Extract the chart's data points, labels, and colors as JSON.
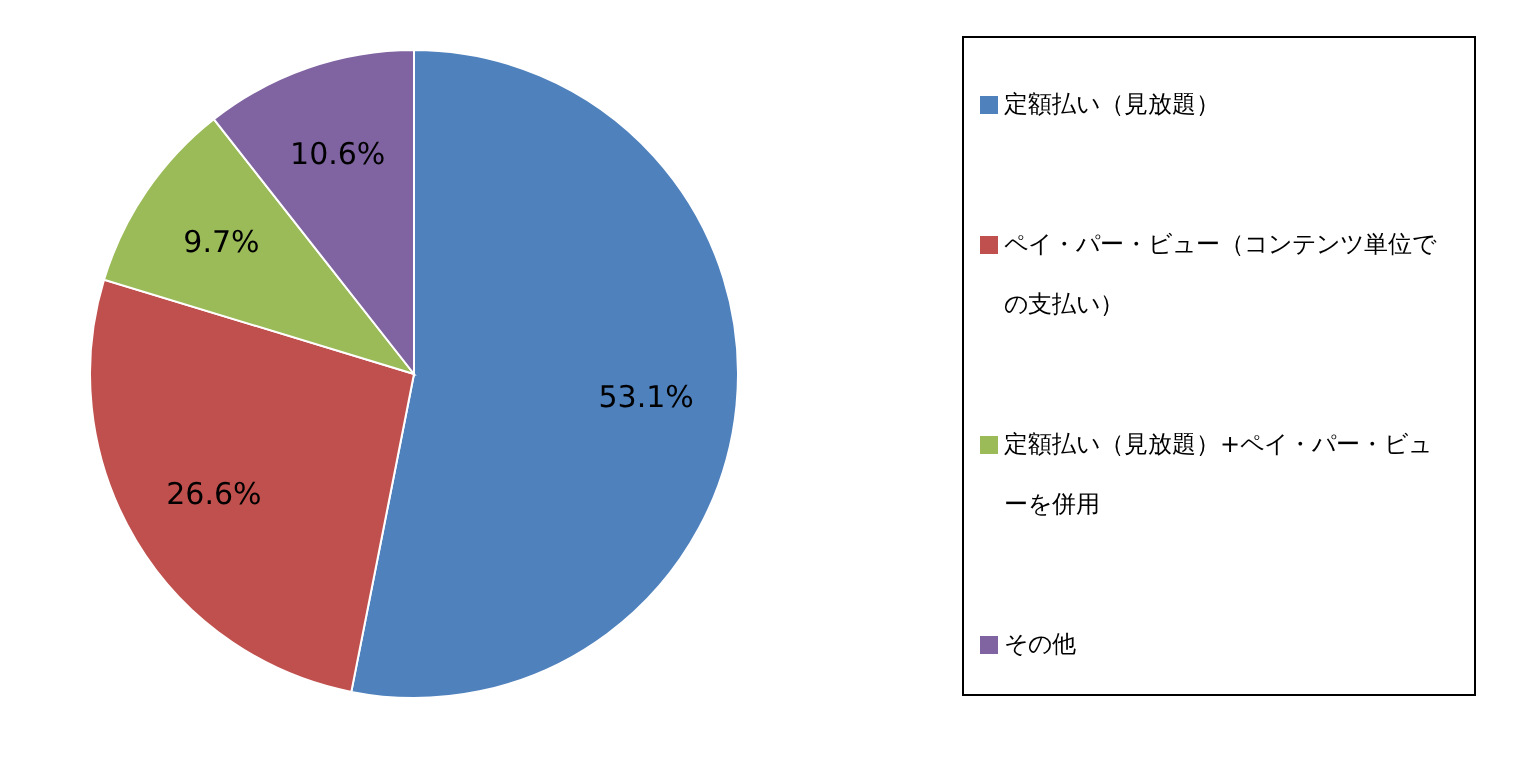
{
  "chart_data": {
    "type": "pie",
    "categories": [
      "定額払い（見放題）",
      "ペイ・パー・ビュー（コンテンツ単位での支払い）",
      "定額払い（見放題）+ペイ・パー・ビューを併用",
      "その他"
    ],
    "values": [
      53.1,
      26.6,
      9.7,
      10.6
    ],
    "value_labels": [
      "53.1%",
      "26.6%",
      "9.7%",
      "10.6%"
    ],
    "colors": [
      "#4f81bd",
      "#c0504d",
      "#9bbb59",
      "#8064a2"
    ],
    "legend": "right"
  }
}
